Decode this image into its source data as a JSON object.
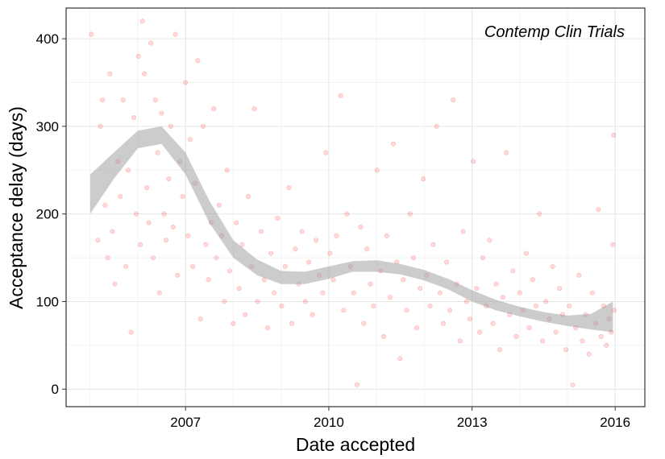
{
  "chart_data": {
    "type": "scatter",
    "title": "",
    "annotation": "Contemp Clin Trials",
    "xlabel": "Date accepted",
    "ylabel": "Acceptance delay (days)",
    "xlim": [
      "2004-07-01",
      "2016-08-15"
    ],
    "ylim": [
      -20,
      435
    ],
    "x_ticks": [
      {
        "date": "2007-01-01",
        "label": "2007"
      },
      {
        "date": "2010-01-01",
        "label": "2010"
      },
      {
        "date": "2013-01-01",
        "label": "2013"
      },
      {
        "date": "2016-01-01",
        "label": "2016"
      }
    ],
    "y_ticks": [
      0,
      100,
      200,
      300,
      400
    ],
    "grid": true,
    "point_color": "#ff0000",
    "point_opacity": 0.15,
    "smooth_band_color": "#999999",
    "smooth_band": [
      {
        "x": "2005-01-01",
        "lo": 200,
        "hi": 245
      },
      {
        "x": "2005-07-01",
        "lo": 240,
        "hi": 270
      },
      {
        "x": "2006-01-01",
        "lo": 275,
        "hi": 295
      },
      {
        "x": "2006-07-01",
        "lo": 280,
        "hi": 300
      },
      {
        "x": "2007-01-01",
        "lo": 245,
        "hi": 270
      },
      {
        "x": "2007-07-01",
        "lo": 190,
        "hi": 215
      },
      {
        "x": "2008-01-01",
        "lo": 150,
        "hi": 170
      },
      {
        "x": "2008-07-01",
        "lo": 130,
        "hi": 148
      },
      {
        "x": "2009-01-01",
        "lo": 120,
        "hi": 135
      },
      {
        "x": "2009-07-01",
        "lo": 120,
        "hi": 134
      },
      {
        "x": "2010-01-01",
        "lo": 126,
        "hi": 140
      },
      {
        "x": "2010-07-01",
        "lo": 134,
        "hi": 146
      },
      {
        "x": "2011-01-01",
        "lo": 134,
        "hi": 147
      },
      {
        "x": "2011-07-01",
        "lo": 131,
        "hi": 143
      },
      {
        "x": "2012-01-01",
        "lo": 124,
        "hi": 136
      },
      {
        "x": "2012-07-01",
        "lo": 114,
        "hi": 126
      },
      {
        "x": "2013-01-01",
        "lo": 100,
        "hi": 113
      },
      {
        "x": "2013-07-01",
        "lo": 90,
        "hi": 102
      },
      {
        "x": "2014-01-01",
        "lo": 83,
        "hi": 94
      },
      {
        "x": "2014-07-01",
        "lo": 77,
        "hi": 88
      },
      {
        "x": "2015-01-01",
        "lo": 72,
        "hi": 84
      },
      {
        "x": "2015-07-01",
        "lo": 68,
        "hi": 86
      },
      {
        "x": "2015-12-15",
        "lo": 65,
        "hi": 100
      }
    ],
    "series": [
      {
        "points": [
          [
            "2005-01-10",
            405
          ],
          [
            "2005-03-01",
            170
          ],
          [
            "2005-03-20",
            300
          ],
          [
            "2005-04-05",
            330
          ],
          [
            "2005-04-25",
            210
          ],
          [
            "2005-05-15",
            150
          ],
          [
            "2005-06-01",
            360
          ],
          [
            "2005-06-20",
            180
          ],
          [
            "2005-07-10",
            120
          ],
          [
            "2005-08-01",
            260
          ],
          [
            "2005-08-20",
            220
          ],
          [
            "2005-09-10",
            330
          ],
          [
            "2005-10-01",
            140
          ],
          [
            "2005-10-20",
            250
          ],
          [
            "2005-11-10",
            65
          ],
          [
            "2005-12-01",
            310
          ],
          [
            "2005-12-20",
            200
          ],
          [
            "2006-01-05",
            380
          ],
          [
            "2006-01-20",
            165
          ],
          [
            "2006-02-05",
            420
          ],
          [
            "2006-02-20",
            360
          ],
          [
            "2006-03-10",
            230
          ],
          [
            "2006-03-25",
            190
          ],
          [
            "2006-04-10",
            395
          ],
          [
            "2006-04-28",
            150
          ],
          [
            "2006-05-15",
            330
          ],
          [
            "2006-06-01",
            270
          ],
          [
            "2006-06-15",
            110
          ],
          [
            "2006-07-01",
            315
          ],
          [
            "2006-07-20",
            200
          ],
          [
            "2006-08-05",
            170
          ],
          [
            "2006-08-25",
            240
          ],
          [
            "2006-09-10",
            300
          ],
          [
            "2006-09-28",
            185
          ],
          [
            "2006-10-15",
            405
          ],
          [
            "2006-11-01",
            130
          ],
          [
            "2006-11-20",
            260
          ],
          [
            "2006-12-10",
            220
          ],
          [
            "2007-01-01",
            350
          ],
          [
            "2007-01-20",
            175
          ],
          [
            "2007-02-05",
            285
          ],
          [
            "2007-02-25",
            140
          ],
          [
            "2007-03-15",
            235
          ],
          [
            "2007-04-05",
            375
          ],
          [
            "2007-04-25",
            80
          ],
          [
            "2007-05-15",
            300
          ],
          [
            "2007-06-05",
            165
          ],
          [
            "2007-06-25",
            125
          ],
          [
            "2007-07-15",
            190
          ],
          [
            "2007-08-05",
            320
          ],
          [
            "2007-08-25",
            150
          ],
          [
            "2007-09-15",
            210
          ],
          [
            "2007-10-05",
            175
          ],
          [
            "2007-10-25",
            100
          ],
          [
            "2007-11-15",
            250
          ],
          [
            "2007-12-05",
            135
          ],
          [
            "2008-01-01",
            75
          ],
          [
            "2008-01-25",
            190
          ],
          [
            "2008-02-15",
            115
          ],
          [
            "2008-03-10",
            165
          ],
          [
            "2008-04-01",
            85
          ],
          [
            "2008-04-25",
            220
          ],
          [
            "2008-05-20",
            140
          ],
          [
            "2008-06-10",
            320
          ],
          [
            "2008-07-05",
            100
          ],
          [
            "2008-08-01",
            180
          ],
          [
            "2008-08-25",
            125
          ],
          [
            "2008-09-20",
            70
          ],
          [
            "2008-10-15",
            155
          ],
          [
            "2008-11-10",
            110
          ],
          [
            "2008-12-05",
            195
          ],
          [
            "2009-01-05",
            95
          ],
          [
            "2009-02-01",
            140
          ],
          [
            "2009-03-01",
            230
          ],
          [
            "2009-03-25",
            75
          ],
          [
            "2009-04-20",
            160
          ],
          [
            "2009-05-15",
            120
          ],
          [
            "2009-06-10",
            180
          ],
          [
            "2009-07-05",
            100
          ],
          [
            "2009-08-01",
            145
          ],
          [
            "2009-08-28",
            85
          ],
          [
            "2009-09-25",
            170
          ],
          [
            "2009-10-20",
            130
          ],
          [
            "2009-11-15",
            110
          ],
          [
            "2009-12-10",
            270
          ],
          [
            "2010-01-10",
            155
          ],
          [
            "2010-02-05",
            125
          ],
          [
            "2010-03-01",
            175
          ],
          [
            "2010-04-01",
            335
          ],
          [
            "2010-04-25",
            90
          ],
          [
            "2010-05-20",
            200
          ],
          [
            "2010-06-15",
            140
          ],
          [
            "2010-07-10",
            110
          ],
          [
            "2010-08-05",
            5
          ],
          [
            "2010-09-01",
            185
          ],
          [
            "2010-09-25",
            75
          ],
          [
            "2010-10-20",
            160
          ],
          [
            "2010-11-15",
            120
          ],
          [
            "2010-12-10",
            95
          ],
          [
            "2011-01-05",
            250
          ],
          [
            "2011-02-01",
            135
          ],
          [
            "2011-02-25",
            60
          ],
          [
            "2011-03-20",
            175
          ],
          [
            "2011-04-15",
            105
          ],
          [
            "2011-05-10",
            280
          ],
          [
            "2011-06-05",
            145
          ],
          [
            "2011-06-30",
            35
          ],
          [
            "2011-07-25",
            125
          ],
          [
            "2011-08-20",
            90
          ],
          [
            "2011-09-15",
            200
          ],
          [
            "2011-10-10",
            150
          ],
          [
            "2011-11-05",
            70
          ],
          [
            "2011-12-01",
            115
          ],
          [
            "2011-12-25",
            240
          ],
          [
            "2012-01-20",
            130
          ],
          [
            "2012-02-15",
            95
          ],
          [
            "2012-03-10",
            165
          ],
          [
            "2012-04-05",
            300
          ],
          [
            "2012-05-01",
            110
          ],
          [
            "2012-05-25",
            75
          ],
          [
            "2012-06-20",
            145
          ],
          [
            "2012-07-15",
            90
          ],
          [
            "2012-08-10",
            330
          ],
          [
            "2012-09-05",
            120
          ],
          [
            "2012-10-01",
            55
          ],
          [
            "2012-10-25",
            180
          ],
          [
            "2012-11-20",
            100
          ],
          [
            "2012-12-15",
            80
          ],
          [
            "2013-01-10",
            260
          ],
          [
            "2013-02-05",
            115
          ],
          [
            "2013-03-01",
            65
          ],
          [
            "2013-03-25",
            150
          ],
          [
            "2013-04-20",
            95
          ],
          [
            "2013-05-15",
            170
          ],
          [
            "2013-06-10",
            75
          ],
          [
            "2013-07-05",
            120
          ],
          [
            "2013-08-01",
            45
          ],
          [
            "2013-08-25",
            105
          ],
          [
            "2013-09-20",
            270
          ],
          [
            "2013-10-15",
            85
          ],
          [
            "2013-11-10",
            135
          ],
          [
            "2013-12-05",
            60
          ],
          [
            "2014-01-01",
            110
          ],
          [
            "2014-01-25",
            90
          ],
          [
            "2014-02-20",
            155
          ],
          [
            "2014-03-15",
            70
          ],
          [
            "2014-04-10",
            125
          ],
          [
            "2014-05-05",
            95
          ],
          [
            "2014-06-01",
            200
          ],
          [
            "2014-06-25",
            55
          ],
          [
            "2014-07-20",
            100
          ],
          [
            "2014-08-15",
            80
          ],
          [
            "2014-09-10",
            140
          ],
          [
            "2014-10-05",
            65
          ],
          [
            "2014-11-01",
            115
          ],
          [
            "2014-11-25",
            85
          ],
          [
            "2014-12-20",
            45
          ],
          [
            "2015-01-15",
            95
          ],
          [
            "2015-02-10",
            5
          ],
          [
            "2015-03-05",
            70
          ],
          [
            "2015-03-30",
            130
          ],
          [
            "2015-04-25",
            55
          ],
          [
            "2015-05-20",
            85
          ],
          [
            "2015-06-15",
            40
          ],
          [
            "2015-07-10",
            110
          ],
          [
            "2015-08-05",
            75
          ],
          [
            "2015-08-25",
            205
          ],
          [
            "2015-09-15",
            60
          ],
          [
            "2015-10-05",
            95
          ],
          [
            "2015-10-25",
            50
          ],
          [
            "2015-11-15",
            80
          ],
          [
            "2015-12-01",
            65
          ],
          [
            "2015-12-15",
            165
          ],
          [
            "2015-12-20",
            290
          ],
          [
            "2015-12-25",
            90
          ]
        ]
      }
    ]
  }
}
